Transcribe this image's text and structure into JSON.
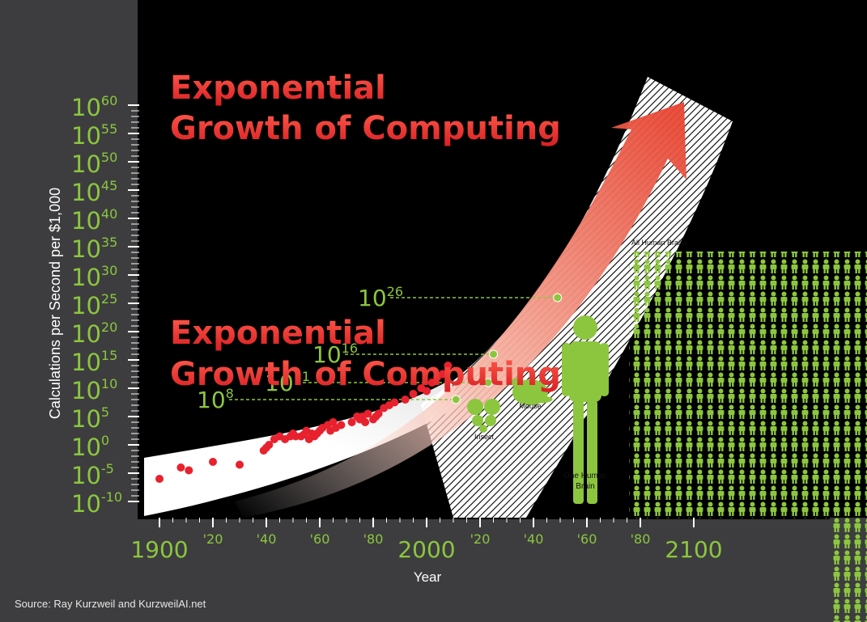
{
  "chart_data": {
    "type": "scatter",
    "title_line1": "Exponential",
    "title_line2": "Growth of Computing",
    "xlabel": "Year",
    "ylabel": "Calculations per Second per $1,000",
    "y_scale": "log",
    "y_base": "10",
    "y_exponents": [
      "60",
      "55",
      "50",
      "45",
      "40",
      "35",
      "30",
      "25",
      "20",
      "15",
      "10",
      "5",
      "0",
      "-5",
      "-10"
    ],
    "ylim_exponent": [
      -10,
      60
    ],
    "xlim": [
      1895,
      2125
    ],
    "x_ticks": [
      {
        "year": 1900,
        "label": "1900",
        "major": true
      },
      {
        "year": 1920,
        "label": "'20",
        "major": false
      },
      {
        "year": 1940,
        "label": "'40",
        "major": false
      },
      {
        "year": 1960,
        "label": "'60",
        "major": false
      },
      {
        "year": 1980,
        "label": "'80",
        "major": false
      },
      {
        "year": 2000,
        "label": "2000",
        "major": true
      },
      {
        "year": 2020,
        "label": "'20",
        "major": false
      },
      {
        "year": 2040,
        "label": "'40",
        "major": false
      },
      {
        "year": 2060,
        "label": "'60",
        "major": false
      },
      {
        "year": 2080,
        "label": "'80",
        "major": false
      },
      {
        "year": 2100,
        "label": "2100",
        "major": true
      }
    ],
    "series": [
      {
        "color": "#e8212e",
        "points": [
          [
            1900,
            -6
          ],
          [
            1908,
            -4
          ],
          [
            1911,
            -4.5
          ],
          [
            1920,
            -3
          ],
          [
            1930,
            -3.5
          ],
          [
            1939,
            -1
          ],
          [
            1940,
            -0.5
          ],
          [
            1941,
            0
          ],
          [
            1943,
            1
          ],
          [
            1945,
            1.5
          ],
          [
            1947,
            1
          ],
          [
            1949,
            1.5
          ],
          [
            1950,
            2
          ],
          [
            1951,
            1.5
          ],
          [
            1953,
            1.5
          ],
          [
            1954,
            1.8
          ],
          [
            1955,
            2.5
          ],
          [
            1956,
            1
          ],
          [
            1957,
            2
          ],
          [
            1958,
            1.5
          ],
          [
            1959,
            2
          ],
          [
            1960,
            2.5
          ],
          [
            1961,
            3
          ],
          [
            1963,
            3.5
          ],
          [
            1964,
            2.5
          ],
          [
            1965,
            4
          ],
          [
            1966,
            3
          ],
          [
            1968,
            3.5
          ],
          [
            1972,
            4
          ],
          [
            1974,
            5
          ],
          [
            1975,
            4.5
          ],
          [
            1976,
            5
          ],
          [
            1977,
            4
          ],
          [
            1978,
            5.5
          ],
          [
            1980,
            4.5
          ],
          [
            1981,
            5
          ],
          [
            1982,
            5.5
          ],
          [
            1984,
            6.5
          ],
          [
            1986,
            7
          ],
          [
            1988,
            7.5
          ],
          [
            1992,
            8
          ],
          [
            1995,
            9
          ],
          [
            1998,
            10
          ],
          [
            2000,
            9.5
          ],
          [
            2002,
            11
          ],
          [
            2004,
            12
          ],
          [
            2006,
            12.5
          ],
          [
            2008,
            14
          ]
        ]
      }
    ],
    "milestones": [
      {
        "year": 2011,
        "base": "10",
        "exp": "8",
        "label": "Insect"
      },
      {
        "year": 2023,
        "base": "10",
        "exp": "11",
        "label": "Mouse"
      },
      {
        "year": 2025,
        "base": "10",
        "exp": "16",
        "label": "One Human Brain"
      },
      {
        "year": 2049,
        "base": "10",
        "exp": "26",
        "label": "All Human Brains"
      }
    ],
    "colors": {
      "data": "#e8212e",
      "axis": "#8cc63f",
      "title": "#ef3b3b",
      "icons": "#8cc63f",
      "panel": "#000000",
      "background": "#3d3d3f"
    }
  },
  "source": "Source: Ray Kurzweil and KurzweilAI.net"
}
